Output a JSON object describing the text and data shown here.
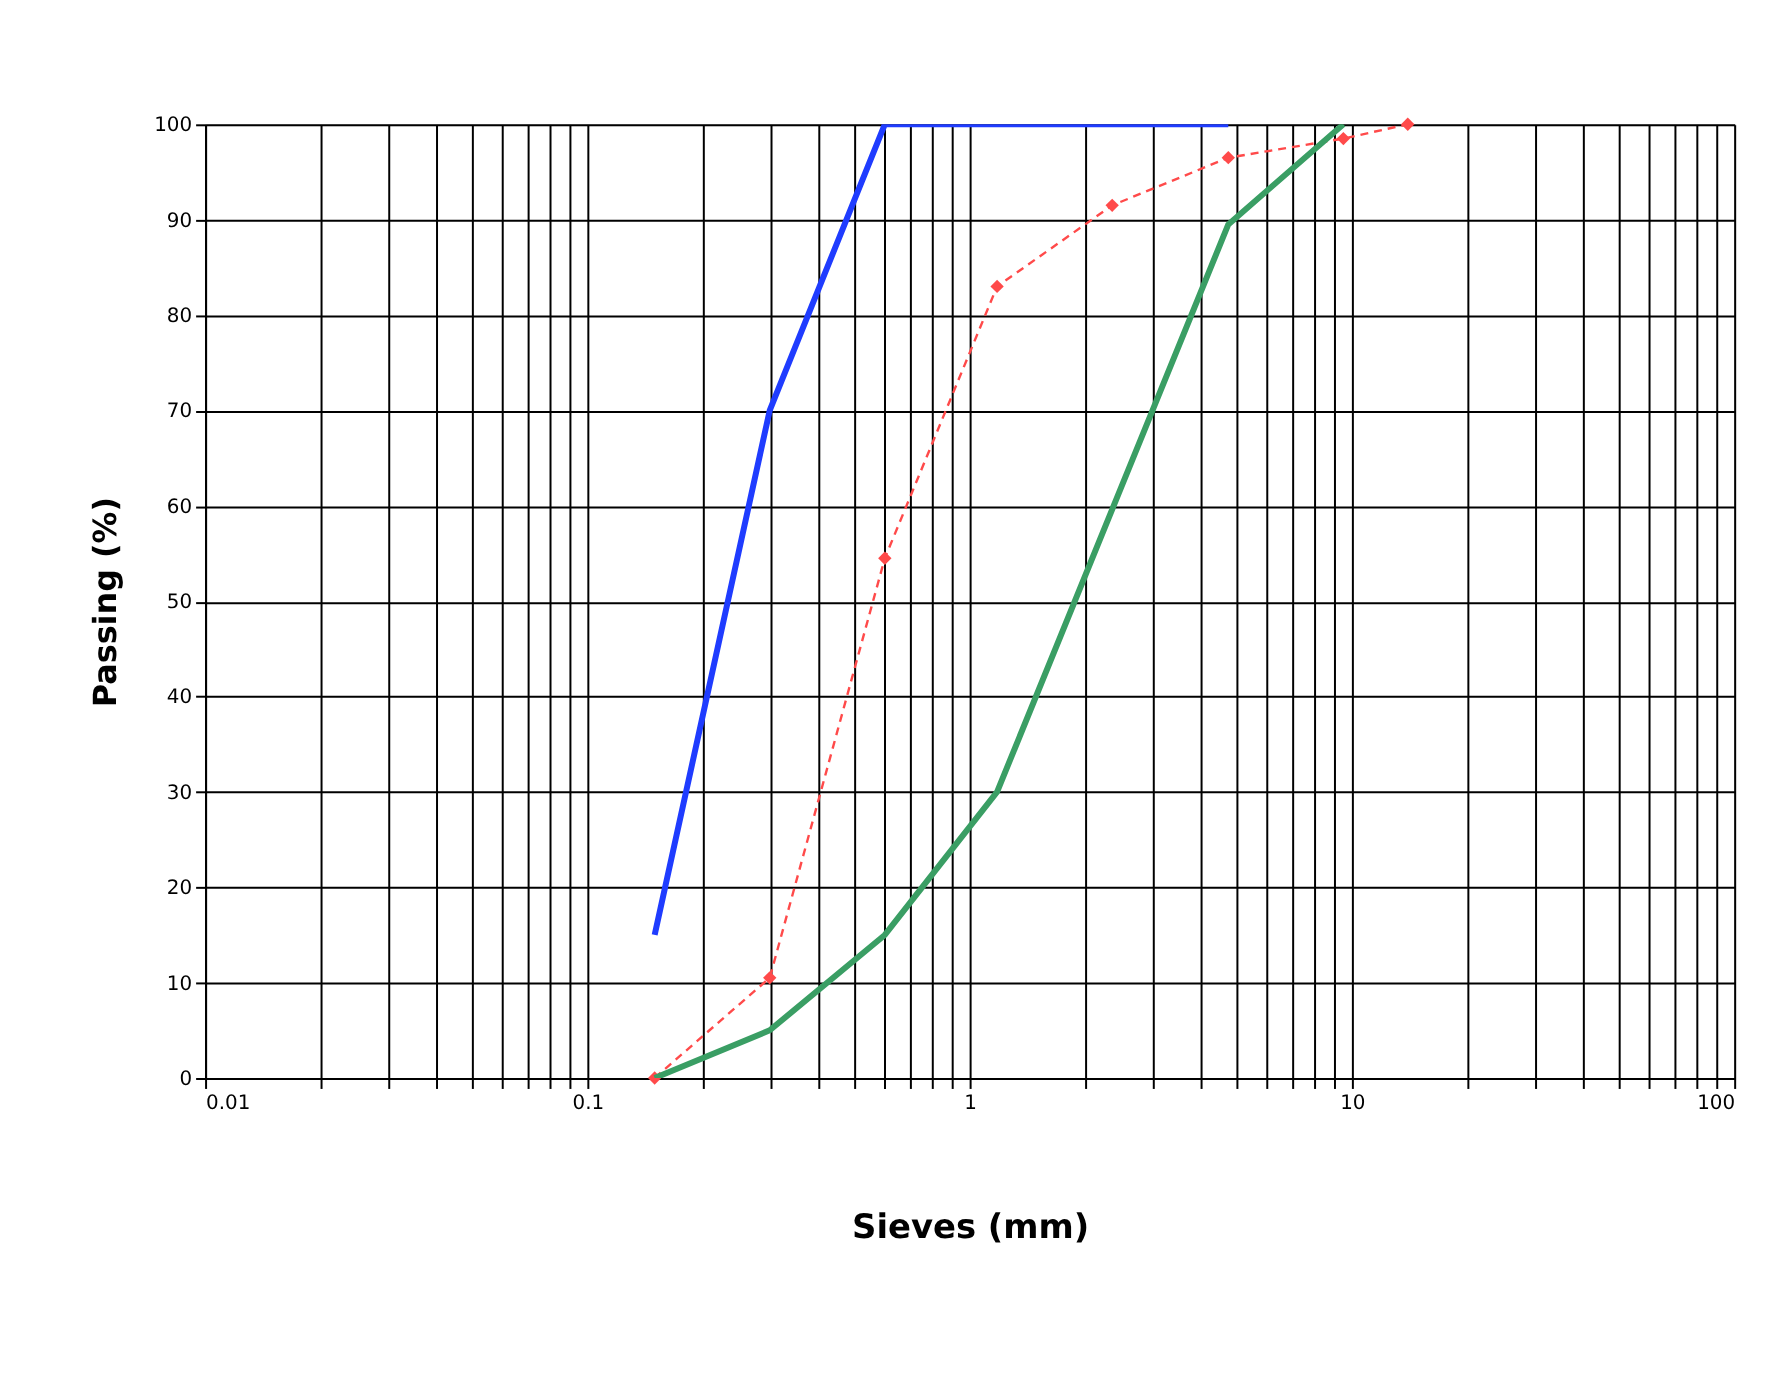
{
  "chart_data": {
    "type": "line",
    "xlabel": "Sieves (mm)",
    "ylabel": "Passing (%)",
    "log": "x",
    "grid": true,
    "xlim": [
      0.01,
      100
    ],
    "ylim": [
      0,
      100
    ],
    "xticks": [
      0.01,
      {
        "value": 0.02,
        "label": null
      },
      {
        "value": 0.03,
        "label": null
      },
      {
        "value": 0.04,
        "label": null
      },
      {
        "value": 0.05,
        "label": null
      },
      {
        "value": 0.06,
        "label": null
      },
      {
        "value": 0.07,
        "label": null
      },
      {
        "value": 0.08,
        "label": null
      },
      {
        "value": 0.09,
        "label": null
      },
      0.1,
      {
        "value": 0.2,
        "label": null
      },
      {
        "value": 0.3,
        "label": null
      },
      {
        "value": 0.4,
        "label": null
      },
      {
        "value": 0.5,
        "label": null
      },
      {
        "value": 0.6,
        "label": null
      },
      {
        "value": 0.7,
        "label": null
      },
      {
        "value": 0.8,
        "label": null
      },
      {
        "value": 0.9,
        "label": null
      },
      1,
      {
        "value": 2,
        "label": null
      },
      {
        "value": 3,
        "label": null
      },
      {
        "value": 4,
        "label": null
      },
      {
        "value": 5,
        "label": null
      },
      {
        "value": 6,
        "label": null
      },
      {
        "value": 7,
        "label": null
      },
      {
        "value": 8,
        "label": null
      },
      {
        "value": 9,
        "label": null
      },
      10,
      {
        "value": 20,
        "label": null
      },
      {
        "value": 30,
        "label": null
      },
      {
        "value": 40,
        "label": null
      },
      {
        "value": 50,
        "label": null
      },
      {
        "value": 60,
        "label": null
      },
      {
        "value": 70,
        "label": null
      },
      {
        "value": 80,
        "label": null
      },
      {
        "value": 90,
        "label": null
      },
      100
    ],
    "yticks": [
      0,
      10,
      20,
      30,
      40,
      50,
      60,
      70,
      80,
      90,
      100
    ],
    "series": [
      {
        "color": "#1f3cff",
        "x": [
          0.15,
          0.3,
          0.6,
          4.75
        ],
        "values": [
          15,
          70,
          100,
          100
        ],
        "marker": "none",
        "line_style": "solid"
      },
      {
        "color": "#ff4a4a",
        "x": [
          0.15,
          0.3,
          0.6,
          1.18,
          2.36,
          4.75,
          9.5,
          14
        ],
        "values": [
          0,
          10.5,
          54.5,
          83,
          91.5,
          96.5,
          98.5,
          100
        ],
        "marker": "diamond",
        "line_style": "dashed"
      },
      {
        "color": "#3a9e64",
        "x": [
          0.15,
          0.3,
          0.6,
          1.18,
          4.75,
          9.5
        ],
        "values": [
          0,
          5,
          15,
          30,
          89.5,
          100
        ],
        "marker": "none",
        "line_style": "solid"
      }
    ]
  }
}
